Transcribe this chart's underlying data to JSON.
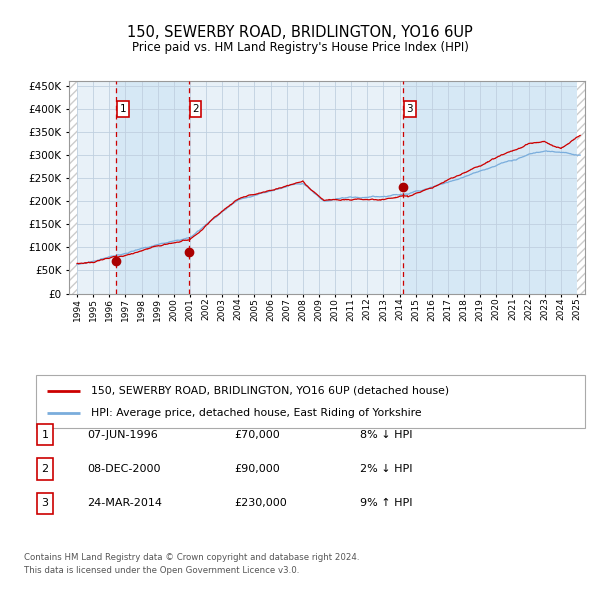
{
  "title1": "150, SEWERBY ROAD, BRIDLINGTON, YO16 6UP",
  "title2": "Price paid vs. HM Land Registry's House Price Index (HPI)",
  "legend_line1": "150, SEWERBY ROAD, BRIDLINGTON, YO16 6UP (detached house)",
  "legend_line2": "HPI: Average price, detached house, East Riding of Yorkshire",
  "footer1": "Contains HM Land Registry data © Crown copyright and database right 2024.",
  "footer2": "This data is licensed under the Open Government Licence v3.0.",
  "transactions": [
    {
      "num": 1,
      "date": "07-JUN-1996",
      "price": 70000,
      "pct": "8%",
      "dir": "↓",
      "year_x": 1996.44
    },
    {
      "num": 2,
      "date": "08-DEC-2000",
      "price": 90000,
      "pct": "2%",
      "dir": "↓",
      "year_x": 2000.94
    },
    {
      "num": 3,
      "date": "24-MAR-2014",
      "price": 230000,
      "pct": "9%",
      "dir": "↑",
      "year_x": 2014.23
    }
  ],
  "hpi_color": "#7aaddc",
  "price_color": "#cc0000",
  "dot_color": "#aa0000",
  "vline_color": "#cc0000",
  "bg_shaded_color": "#d6e8f5",
  "bg_main_color": "#e8f1f8",
  "grid_color": "#c0d0e0",
  "hatch_color": "#bbbbbb",
  "ylim": [
    0,
    460000
  ],
  "xlim_start": 1993.5,
  "xlim_end": 2025.5
}
